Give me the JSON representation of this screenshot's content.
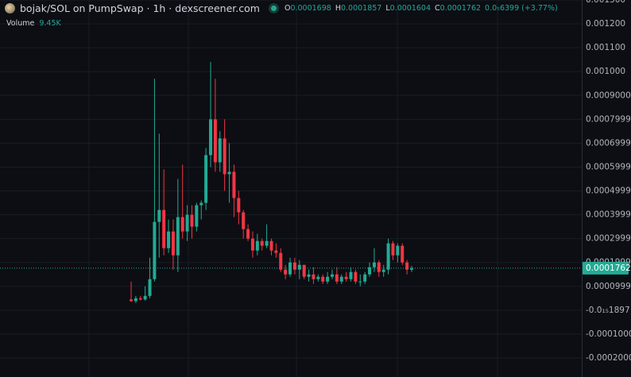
{
  "chart_data": {
    "type": "candlestick",
    "title": "bojak/SOL on PumpSwap · 1h · dexscreener.com",
    "legend": {
      "open_key": "O",
      "open": "0.0001698",
      "high_key": "H",
      "high": "0.0001857",
      "low_key": "L",
      "low": "0.0001604",
      "close_key": "C",
      "close": "0.0001762",
      "change": "0.0₅6399 (+3.77%)"
    },
    "volume_label": "Volume",
    "volume": "9.45K",
    "up_color": "#22ab94",
    "down_color": "#f23645",
    "grid": true,
    "ylim": [
      -0.00028,
      0.0013
    ],
    "yticks": [
      {
        "value": 0.0013,
        "label": "0.001300"
      },
      {
        "value": 0.0012,
        "label": "0.001200"
      },
      {
        "value": 0.0011,
        "label": "0.001100"
      },
      {
        "value": 0.001,
        "label": "0.001000"
      },
      {
        "value": 0.0009,
        "label": "0.0009000"
      },
      {
        "value": 0.0007999,
        "label": "0.0007999"
      },
      {
        "value": 0.0006999,
        "label": "0.0006999"
      },
      {
        "value": 0.0005999,
        "label": "0.0005999"
      },
      {
        "value": 0.0004999,
        "label": "0.0004999"
      },
      {
        "value": 0.0003999,
        "label": "0.0003999"
      },
      {
        "value": 0.0002999,
        "label": "0.0002999"
      },
      {
        "value": 0.0001999,
        "label": "0.0001999"
      },
      {
        "value": 9.999e-05,
        "label": "0.00009999"
      },
      {
        "value": -1.897e-19,
        "label": "-0.0₁₅1897"
      },
      {
        "value": -0.0001,
        "label": "-0.0001000"
      },
      {
        "value": -0.0002,
        "label": "-0.0002000"
      }
    ],
    "open": [
      4.5e-05,
      3.8e-05,
      5e-05,
      4.5e-05,
      6e-05,
      0.00013,
      0.00037,
      0.00042,
      0.00026,
      0.00033,
      0.00023,
      0.00039,
      0.00033,
      0.0004,
      0.00035,
      0.00044,
      0.00045,
      0.00065,
      0.0008,
      0.00062,
      0.00072,
      0.00057,
      0.00058,
      0.00047,
      0.00041,
      0.00034,
      0.0003,
      0.00025,
      0.00029,
      0.00027,
      0.00029,
      0.00025,
      0.00024,
      0.00017,
      0.00015,
      0.0002,
      0.00017,
      0.00019,
      0.00014,
      0.00015,
      0.00013,
      0.00014,
      0.00012,
      0.00014,
      0.00015,
      0.00012,
      0.00014,
      0.00013,
      0.00016,
      0.00012,
      0.00012,
      0.00015,
      0.00018,
      0.0002,
      0.00016,
      0.00017,
      0.00028,
      0.00023,
      0.00027,
      0.0002,
      0.0001698
    ],
    "high": [
      0.00012,
      6e-05,
      6e-05,
      0.0001,
      0.00022,
      0.00097,
      0.00074,
      0.00059,
      0.00038,
      0.00038,
      0.00055,
      0.00061,
      0.00044,
      0.00044,
      0.00045,
      0.00046,
      0.00068,
      0.00104,
      0.00097,
      0.00075,
      0.0008,
      0.0007,
      0.00061,
      0.0005,
      0.00042,
      0.00036,
      0.00033,
      0.00032,
      0.0003,
      0.00036,
      0.0003,
      0.00028,
      0.00026,
      0.00019,
      0.00022,
      0.00022,
      0.00021,
      0.00019,
      0.00017,
      0.00018,
      0.00015,
      0.00015,
      0.00016,
      0.00017,
      0.00018,
      0.00015,
      0.00016,
      0.00018,
      0.00017,
      0.00015,
      0.00016,
      0.0002,
      0.00026,
      0.00021,
      0.00019,
      0.0003,
      0.00029,
      0.00028,
      0.00028,
      0.00021,
      0.0001857
    ],
    "low": [
      3.5e-05,
      3e-05,
      4e-05,
      4e-05,
      5e-05,
      0.00012,
      0.00022,
      0.00023,
      0.00024,
      0.00017,
      0.00016,
      0.0003,
      0.00029,
      0.0003,
      0.00033,
      0.00038,
      0.00042,
      0.0006,
      0.00058,
      0.00058,
      0.0005,
      0.00045,
      0.00039,
      0.00036,
      0.0003,
      0.00029,
      0.00022,
      0.00023,
      0.00025,
      0.00026,
      0.00023,
      0.00022,
      0.00016,
      0.00013,
      0.00014,
      0.00015,
      0.00013,
      0.00013,
      0.00012,
      0.00011,
      0.00012,
      0.00011,
      0.00011,
      0.00013,
      0.00011,
      0.00011,
      0.00012,
      0.00012,
      0.00011,
      0.0001,
      0.00011,
      0.00014,
      0.00016,
      0.00014,
      0.00014,
      0.00015,
      0.00021,
      0.0002,
      0.00019,
      0.00015,
      0.0001604
    ],
    "close": [
      3.8e-05,
      5e-05,
      4.5e-05,
      6e-05,
      0.00013,
      0.00037,
      0.00042,
      0.00026,
      0.00033,
      0.00023,
      0.00039,
      0.00033,
      0.0004,
      0.00035,
      0.00044,
      0.00045,
      0.00065,
      0.0008,
      0.00062,
      0.00072,
      0.00057,
      0.00058,
      0.00047,
      0.00041,
      0.00034,
      0.0003,
      0.00025,
      0.00029,
      0.00027,
      0.00029,
      0.00025,
      0.00024,
      0.00017,
      0.00015,
      0.0002,
      0.00017,
      0.00019,
      0.00014,
      0.00015,
      0.00013,
      0.00014,
      0.00012,
      0.00014,
      0.00015,
      0.00012,
      0.00014,
      0.00013,
      0.00016,
      0.00012,
      0.00012,
      0.00015,
      0.00018,
      0.0002,
      0.00016,
      0.00017,
      0.00028,
      0.00023,
      0.00027,
      0.0002,
      0.00017,
      0.0001762
    ]
  }
}
